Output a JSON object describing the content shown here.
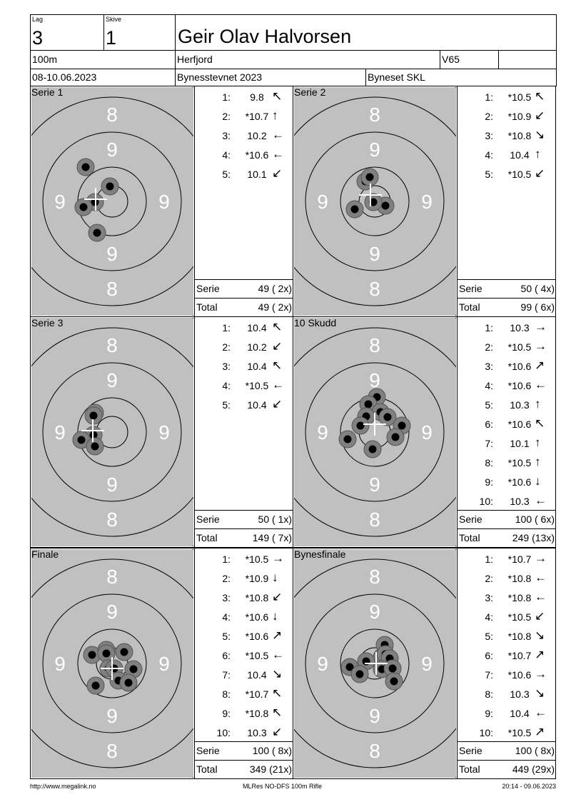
{
  "header": {
    "lag_label": "Lag",
    "lag": "3",
    "skive_label": "Skive",
    "skive": "1",
    "shooter": "Geir Olav Halvorsen",
    "distance": "100m",
    "club": "Herfjord",
    "class": "V65",
    "class_extra": "",
    "date": "08-10.06.2023",
    "event": "Bynesstevnet 2023",
    "organizer": "Byneset SKL"
  },
  "colors": {
    "target_bg": "#c0c0c0",
    "hit_ring": "#808080",
    "hit_core": "#000000",
    "ring_label": "#ffffff"
  },
  "ring_labels": {
    "outer": "8",
    "inner": "9"
  },
  "labels": {
    "serie": "Serie",
    "total": "Total"
  },
  "panels": [
    {
      "title": "Serie 1",
      "serie": "49 ( 2x)",
      "total": "49 ( 2x)",
      "shots": [
        {
          "n": "1:",
          "v": "9.8",
          "dir": "nw"
        },
        {
          "n": "2:",
          "v": "*10.7",
          "dir": "n"
        },
        {
          "n": "3:",
          "v": "10.2",
          "dir": "w"
        },
        {
          "n": "4:",
          "v": "*10.6",
          "dir": "w"
        },
        {
          "n": "5:",
          "v": "10.1",
          "dir": "sw"
        }
      ]
    },
    {
      "title": "Serie 2",
      "serie": "50 ( 4x)",
      "total": "99 ( 6x)",
      "shots": [
        {
          "n": "1:",
          "v": "*10.5",
          "dir": "nw"
        },
        {
          "n": "2:",
          "v": "*10.9",
          "dir": "sw"
        },
        {
          "n": "3:",
          "v": "*10.8",
          "dir": "se"
        },
        {
          "n": "4:",
          "v": "10.4",
          "dir": "n"
        },
        {
          "n": "5:",
          "v": "*10.5",
          "dir": "sw"
        }
      ]
    },
    {
      "title": "Serie 3",
      "serie": "50 ( 1x)",
      "total": "149 ( 7x)",
      "shots": [
        {
          "n": "1:",
          "v": "10.4",
          "dir": "nw"
        },
        {
          "n": "2:",
          "v": "10.2",
          "dir": "sw"
        },
        {
          "n": "3:",
          "v": "10.4",
          "dir": "nw"
        },
        {
          "n": "4:",
          "v": "*10.5",
          "dir": "w"
        },
        {
          "n": "5:",
          "v": "10.4",
          "dir": "sw"
        }
      ]
    },
    {
      "title": "10 Skudd",
      "serie": "100 ( 6x)",
      "total": "249 (13x)",
      "shots": [
        {
          "n": "1:",
          "v": "10.3",
          "dir": "e"
        },
        {
          "n": "2:",
          "v": "*10.5",
          "dir": "e"
        },
        {
          "n": "3:",
          "v": "*10.6",
          "dir": "ne"
        },
        {
          "n": "4:",
          "v": "*10.6",
          "dir": "w"
        },
        {
          "n": "5:",
          "v": "10.3",
          "dir": "n"
        },
        {
          "n": "6:",
          "v": "*10.6",
          "dir": "nw"
        },
        {
          "n": "7:",
          "v": "10.1",
          "dir": "n"
        },
        {
          "n": "8:",
          "v": "*10.5",
          "dir": "n"
        },
        {
          "n": "9:",
          "v": "*10.6",
          "dir": "s"
        },
        {
          "n": "10:",
          "v": "10.3",
          "dir": "w"
        }
      ]
    },
    {
      "title": "Finale",
      "serie": "100 ( 8x)",
      "total": "349 (21x)",
      "shots": [
        {
          "n": "1:",
          "v": "*10.5",
          "dir": "e"
        },
        {
          "n": "2:",
          "v": "*10.9",
          "dir": "s"
        },
        {
          "n": "3:",
          "v": "*10.8",
          "dir": "sw"
        },
        {
          "n": "4:",
          "v": "*10.6",
          "dir": "s"
        },
        {
          "n": "5:",
          "v": "*10.6",
          "dir": "ne"
        },
        {
          "n": "6:",
          "v": "*10.5",
          "dir": "w"
        },
        {
          "n": "7:",
          "v": "10.4",
          "dir": "se"
        },
        {
          "n": "8:",
          "v": "*10.7",
          "dir": "nw"
        },
        {
          "n": "9:",
          "v": "*10.8",
          "dir": "nw"
        },
        {
          "n": "10:",
          "v": "10.3",
          "dir": "sw"
        }
      ]
    },
    {
      "title": "Bynesfinale",
      "serie": "100 ( 8x)",
      "total": "449 (29x)",
      "shots": [
        {
          "n": "1:",
          "v": "*10.7",
          "dir": "e"
        },
        {
          "n": "2:",
          "v": "*10.8",
          "dir": "w"
        },
        {
          "n": "3:",
          "v": "*10.8",
          "dir": "w"
        },
        {
          "n": "4:",
          "v": "*10.5",
          "dir": "sw"
        },
        {
          "n": "5:",
          "v": "*10.8",
          "dir": "se"
        },
        {
          "n": "6:",
          "v": "*10.7",
          "dir": "ne"
        },
        {
          "n": "7:",
          "v": "*10.6",
          "dir": "e"
        },
        {
          "n": "8:",
          "v": "10.3",
          "dir": "se"
        },
        {
          "n": "9:",
          "v": "10.4",
          "dir": "w"
        },
        {
          "n": "10:",
          "v": "*10.5",
          "dir": "ne"
        }
      ]
    }
  ],
  "footer": {
    "left": "http://www.megalink.no",
    "center": "MLRes NO-DFS 100m Rifle",
    "right": "20:14 - 09.06.2023"
  }
}
